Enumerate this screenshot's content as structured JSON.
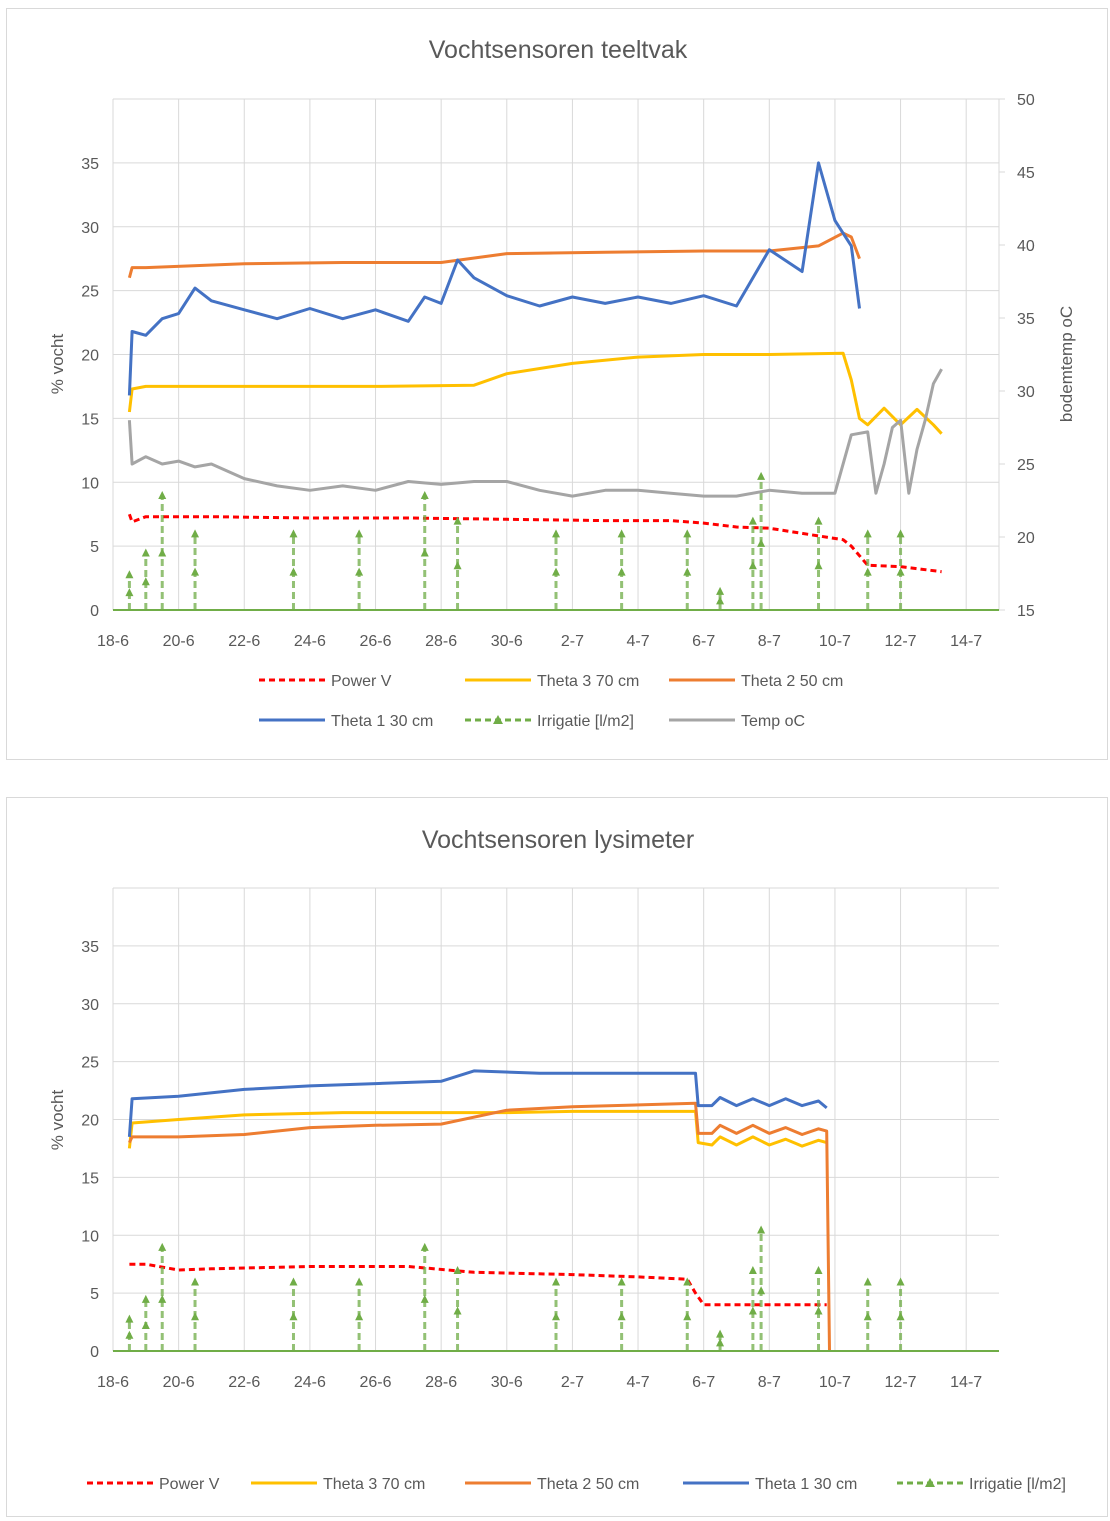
{
  "colors": {
    "power": "#ff0000",
    "theta3": "#ffc000",
    "theta2": "#ed7d31",
    "theta1": "#4472c4",
    "irrigatie": "#70ad47",
    "temp": "#a5a5a5",
    "grid": "#d9d9d9",
    "text": "#595959"
  },
  "chart_data": [
    {
      "type": "line",
      "title": "Vochtsensoren teeltvak",
      "ylabel": "% vocht",
      "y2label": "bodemtemp oC",
      "x_axis": "date",
      "xlim": [
        "2019-06-18",
        "2019-07-15"
      ],
      "x_tick_labels": [
        "18-6",
        "20-6",
        "22-6",
        "24-6",
        "26-6",
        "28-6",
        "30-6",
        "2-7",
        "4-7",
        "6-7",
        "8-7",
        "10-7",
        "12-7",
        "14-7"
      ],
      "ylim": [
        0,
        40
      ],
      "y_ticks": [
        0,
        5,
        10,
        15,
        20,
        25,
        30,
        35
      ],
      "y2lim": [
        15,
        50
      ],
      "y2_ticks": [
        15,
        20,
        25,
        30,
        35,
        40,
        45,
        50
      ],
      "grid": true,
      "legend_position": "bottom",
      "legend": [
        "Power V",
        "Theta 3 70 cm",
        "Theta 2 50 cm",
        "Theta 1 30 cm",
        "Irrigatie [l/m2]",
        "Temp oC"
      ],
      "series": [
        {
          "name": "Power V",
          "axis": "left",
          "style": "dashed",
          "color_key": "power",
          "x": [
            "2019-06-18 12:00",
            "2019-06-18 14:00",
            "2019-06-19",
            "2019-06-21",
            "2019-06-24",
            "2019-06-27",
            "2019-06-30",
            "2019-07-03",
            "2019-07-05",
            "2019-07-06",
            "2019-07-07",
            "2019-07-08",
            "2019-07-09",
            "2019-07-10 06:00",
            "2019-07-10 12:00",
            "2019-07-11",
            "2019-07-12",
            "2019-07-13 06:00"
          ],
          "values": [
            7.5,
            6.9,
            7.3,
            7.3,
            7.2,
            7.2,
            7.1,
            7.0,
            7.0,
            6.8,
            6.5,
            6.4,
            6.0,
            5.5,
            5.0,
            3.5,
            3.4,
            3.0
          ]
        },
        {
          "name": "Theta 3 70 cm",
          "axis": "left",
          "color_key": "theta3",
          "x": [
            "2019-06-18 12:00",
            "2019-06-18 14:00",
            "2019-06-19",
            "2019-06-22",
            "2019-06-26",
            "2019-06-29",
            "2019-06-30",
            "2019-07-02",
            "2019-07-04",
            "2019-07-06",
            "2019-07-08",
            "2019-07-10 06:00",
            "2019-07-10 12:00",
            "2019-07-10 18:00",
            "2019-07-11",
            "2019-07-11 12:00",
            "2019-07-12",
            "2019-07-12 12:00",
            "2019-07-13",
            "2019-07-13 06:00"
          ],
          "values": [
            15.5,
            17.3,
            17.5,
            17.5,
            17.5,
            17.6,
            18.5,
            19.3,
            19.8,
            20.0,
            20.0,
            20.1,
            18.0,
            15.0,
            14.5,
            15.8,
            14.5,
            15.7,
            14.5,
            13.8
          ]
        },
        {
          "name": "Theta 2 50 cm",
          "axis": "left",
          "color_key": "theta2",
          "x": [
            "2019-06-18 12:00",
            "2019-06-18 14:00",
            "2019-06-19",
            "2019-06-22",
            "2019-06-25",
            "2019-06-28",
            "2019-06-30",
            "2019-07-03",
            "2019-07-06",
            "2019-07-08",
            "2019-07-09 12:00",
            "2019-07-10 06:00",
            "2019-07-10 12:00",
            "2019-07-10 18:00"
          ],
          "values": [
            26.0,
            26.8,
            26.8,
            27.1,
            27.2,
            27.2,
            27.9,
            28.0,
            28.1,
            28.1,
            28.5,
            29.5,
            29.2,
            27.5
          ]
        },
        {
          "name": "Theta 1 30 cm",
          "axis": "left",
          "color_key": "theta1",
          "x": [
            "2019-06-18 12:00",
            "2019-06-18 14:00",
            "2019-06-19",
            "2019-06-19 12:00",
            "2019-06-20",
            "2019-06-20 12:00",
            "2019-06-21",
            "2019-06-22",
            "2019-06-23",
            "2019-06-24",
            "2019-06-25",
            "2019-06-26",
            "2019-06-27",
            "2019-06-27 12:00",
            "2019-06-28",
            "2019-06-28 12:00",
            "2019-06-29",
            "2019-06-30",
            "2019-07-01",
            "2019-07-02",
            "2019-07-03",
            "2019-07-04",
            "2019-07-05",
            "2019-07-06",
            "2019-07-07",
            "2019-07-08",
            "2019-07-09",
            "2019-07-09 12:00",
            "2019-07-10",
            "2019-07-10 12:00",
            "2019-07-10 18:00"
          ],
          "values": [
            16.8,
            21.8,
            21.5,
            22.8,
            23.2,
            25.2,
            24.2,
            23.5,
            22.8,
            23.6,
            22.8,
            23.5,
            22.6,
            24.5,
            24.0,
            27.4,
            26.0,
            24.6,
            23.8,
            24.5,
            24.0,
            24.5,
            24.0,
            24.6,
            23.8,
            28.2,
            26.5,
            35.0,
            30.5,
            28.5,
            23.6
          ]
        },
        {
          "name": "Irrigatie [l/m2]",
          "axis": "left",
          "style": "dashed-marker",
          "color_key": "irrigatie",
          "x": [
            "2019-06-18 12:00",
            "2019-06-19",
            "2019-06-19 12:00",
            "2019-06-20 12:00",
            "2019-06-23 12:00",
            "2019-06-25 12:00",
            "2019-06-27 12:00",
            "2019-06-28 12:00",
            "2019-07-01 12:00",
            "2019-07-03 12:00",
            "2019-07-05 12:00",
            "2019-07-06 12:00",
            "2019-07-07 12:00",
            "2019-07-07 18:00",
            "2019-07-09 12:00",
            "2019-07-11",
            "2019-07-12"
          ],
          "values": [
            2.8,
            4.5,
            9.0,
            6.0,
            6.0,
            6.0,
            9.0,
            7.0,
            6.0,
            6.0,
            6.0,
            1.5,
            7.0,
            10.5,
            7.0,
            6.0,
            6.0
          ]
        },
        {
          "name": "Temp oC",
          "axis": "right",
          "color_key": "temp",
          "x": [
            "2019-06-18 12:00",
            "2019-06-18 14:00",
            "2019-06-19",
            "2019-06-19 12:00",
            "2019-06-20",
            "2019-06-20 12:00",
            "2019-06-21",
            "2019-06-22",
            "2019-06-23",
            "2019-06-24",
            "2019-06-25",
            "2019-06-26",
            "2019-06-27",
            "2019-06-28",
            "2019-06-29",
            "2019-06-30",
            "2019-07-01",
            "2019-07-02",
            "2019-07-03",
            "2019-07-04",
            "2019-07-05",
            "2019-07-06",
            "2019-07-07",
            "2019-07-08",
            "2019-07-09",
            "2019-07-10",
            "2019-07-10 12:00",
            "2019-07-11",
            "2019-07-11 06:00",
            "2019-07-11 12:00",
            "2019-07-11 18:00",
            "2019-07-12",
            "2019-07-12 06:00",
            "2019-07-12 12:00",
            "2019-07-12 18:00",
            "2019-07-13",
            "2019-07-13 06:00"
          ],
          "values": [
            28.0,
            25.0,
            25.5,
            25.0,
            25.2,
            24.8,
            25.0,
            24.0,
            23.5,
            23.2,
            23.5,
            23.2,
            23.8,
            23.6,
            23.8,
            23.8,
            23.2,
            22.8,
            23.2,
            23.2,
            23.0,
            22.8,
            22.8,
            23.2,
            23.0,
            23.0,
            27.0,
            27.2,
            23.0,
            25.0,
            27.5,
            28.0,
            23.0,
            26.0,
            28.0,
            30.5,
            31.5
          ]
        }
      ]
    },
    {
      "type": "line",
      "title": "Vochtsensoren lysimeter",
      "ylabel": "% vocht",
      "x_axis": "date",
      "xlim": [
        "2019-06-18",
        "2019-07-15"
      ],
      "x_tick_labels": [
        "18-6",
        "20-6",
        "22-6",
        "24-6",
        "26-6",
        "28-6",
        "30-6",
        "2-7",
        "4-7",
        "6-7",
        "8-7",
        "10-7",
        "12-7",
        "14-7"
      ],
      "ylim": [
        0,
        40
      ],
      "y_ticks": [
        0,
        5,
        10,
        15,
        20,
        25,
        30,
        35
      ],
      "grid": true,
      "legend_position": "bottom",
      "legend": [
        "Power V",
        "Theta 3 70 cm",
        "Theta 2 50 cm",
        "Theta 1 30 cm",
        "Irrigatie [l/m2]"
      ],
      "series": [
        {
          "name": "Power V",
          "axis": "left",
          "style": "dashed",
          "color_key": "power",
          "x": [
            "2019-06-18 12:00",
            "2019-06-19",
            "2019-06-20",
            "2019-06-21",
            "2019-06-24",
            "2019-06-27",
            "2019-06-29",
            "2019-07-02",
            "2019-07-04",
            "2019-07-05 12:00",
            "2019-07-05 18:00",
            "2019-07-06",
            "2019-07-07",
            "2019-07-08",
            "2019-07-09",
            "2019-07-09 18:00"
          ],
          "values": [
            7.5,
            7.5,
            7.0,
            7.1,
            7.3,
            7.3,
            6.8,
            6.6,
            6.4,
            6.2,
            5.0,
            4.0,
            4.0,
            4.0,
            4.0,
            4.0
          ]
        },
        {
          "name": "Theta 3 70 cm",
          "axis": "left",
          "color_key": "theta3",
          "x": [
            "2019-06-18 12:00",
            "2019-06-18 14:00",
            "2019-06-20",
            "2019-06-22",
            "2019-06-25",
            "2019-06-28",
            "2019-06-30",
            "2019-07-02",
            "2019-07-05 18:00",
            "2019-07-05 20:00",
            "2019-07-06 06:00",
            "2019-07-06 12:00",
            "2019-07-07",
            "2019-07-07 12:00",
            "2019-07-08",
            "2019-07-08 12:00",
            "2019-07-09",
            "2019-07-09 12:00",
            "2019-07-09 18:00"
          ],
          "values": [
            17.5,
            19.7,
            20.0,
            20.4,
            20.6,
            20.6,
            20.6,
            20.7,
            20.7,
            18.0,
            17.8,
            18.5,
            17.8,
            18.5,
            17.8,
            18.3,
            17.7,
            18.2,
            18.0
          ]
        },
        {
          "name": "Theta 2 50 cm",
          "axis": "left",
          "color_key": "theta2",
          "x": [
            "2019-06-18 12:00",
            "2019-06-18 14:00",
            "2019-06-20",
            "2019-06-22",
            "2019-06-24",
            "2019-06-26",
            "2019-06-28",
            "2019-06-30",
            "2019-07-02",
            "2019-07-05 18:00",
            "2019-07-05 20:00",
            "2019-07-06 06:00",
            "2019-07-06 12:00",
            "2019-07-07",
            "2019-07-07 12:00",
            "2019-07-08",
            "2019-07-08 12:00",
            "2019-07-09",
            "2019-07-09 12:00",
            "2019-07-09 18:00",
            "2019-07-09 20:00"
          ],
          "values": [
            18.0,
            18.5,
            18.5,
            18.7,
            19.3,
            19.5,
            19.6,
            20.8,
            21.1,
            21.4,
            18.8,
            18.8,
            19.5,
            18.8,
            19.5,
            18.8,
            19.3,
            18.7,
            19.2,
            19.0,
            0.0
          ]
        },
        {
          "name": "Theta 1 30 cm",
          "axis": "left",
          "color_key": "theta1",
          "x": [
            "2019-06-18 12:00",
            "2019-06-18 14:00",
            "2019-06-20",
            "2019-06-22",
            "2019-06-24",
            "2019-06-26",
            "2019-06-28",
            "2019-06-29",
            "2019-07-01",
            "2019-07-03",
            "2019-07-05 18:00",
            "2019-07-05 20:00",
            "2019-07-06 06:00",
            "2019-07-06 12:00",
            "2019-07-07",
            "2019-07-07 12:00",
            "2019-07-08",
            "2019-07-08 12:00",
            "2019-07-09",
            "2019-07-09 12:00",
            "2019-07-09 18:00"
          ],
          "values": [
            18.5,
            21.8,
            22.0,
            22.6,
            22.9,
            23.1,
            23.3,
            24.2,
            24.0,
            24.0,
            24.0,
            21.2,
            21.2,
            21.9,
            21.2,
            21.8,
            21.2,
            21.8,
            21.2,
            21.6,
            21.0
          ]
        },
        {
          "name": "Irrigatie [l/m2]",
          "axis": "left",
          "style": "dashed-marker",
          "color_key": "irrigatie",
          "x": [
            "2019-06-18 12:00",
            "2019-06-19",
            "2019-06-19 12:00",
            "2019-06-20 12:00",
            "2019-06-23 12:00",
            "2019-06-25 12:00",
            "2019-06-27 12:00",
            "2019-06-28 12:00",
            "2019-07-01 12:00",
            "2019-07-03 12:00",
            "2019-07-05 12:00",
            "2019-07-06 12:00",
            "2019-07-07 12:00",
            "2019-07-07 18:00",
            "2019-07-09 12:00",
            "2019-07-11",
            "2019-07-12"
          ],
          "values": [
            2.8,
            4.5,
            9.0,
            6.0,
            6.0,
            6.0,
            9.0,
            7.0,
            6.0,
            6.0,
            6.0,
            1.5,
            7.0,
            10.5,
            7.0,
            6.0,
            6.0
          ]
        }
      ]
    }
  ]
}
